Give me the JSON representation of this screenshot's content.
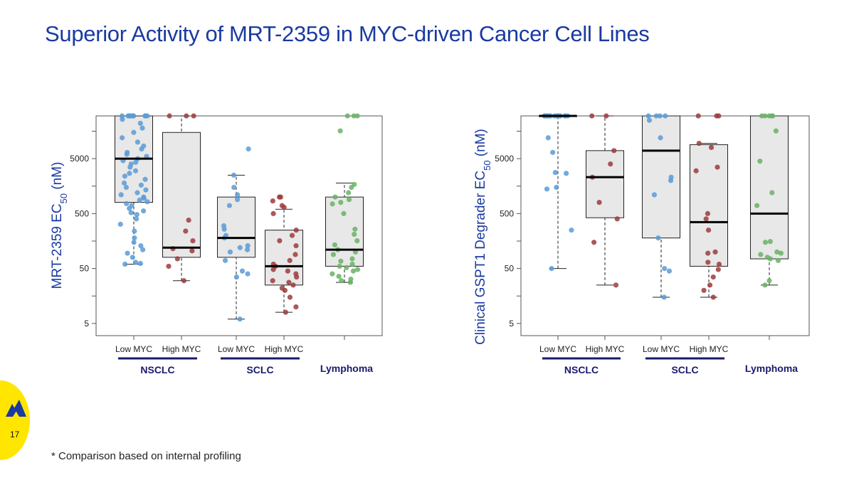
{
  "slide": {
    "title": "Superior Activity of MRT-2359 in MYC-driven Cancer Cell Lines",
    "footnote": "* Comparison based on internal profiling",
    "page_number": "17",
    "logo_icon": "company-logo-icon",
    "colors": {
      "title": "#1a3aa0",
      "badge": "#ffe600",
      "group_bar": "#1a1a6e"
    }
  },
  "chart_data": [
    {
      "type": "box",
      "ylabel": "MRT-2359 EC50 (nM)",
      "yscale": "log",
      "ylim": [
        3,
        30000
      ],
      "yticks": [
        5,
        50,
        500,
        5000
      ],
      "categories": [
        "Low MYC",
        "High MYC",
        "Low MYC",
        "High MYC",
        ""
      ],
      "groups": [
        {
          "label": "NSCLC",
          "categories": [
            0,
            1
          ]
        },
        {
          "label": "SCLC",
          "categories": [
            2,
            3
          ]
        },
        {
          "label": "Lymphoma",
          "categories": [
            4
          ]
        }
      ],
      "boxes": [
        {
          "color": "#5b9bd5",
          "min": 60,
          "q1": 800,
          "median": 5000,
          "q3": 30000,
          "max": 30000,
          "points": [
            60,
            62,
            65,
            80,
            95,
            110,
            130,
            150,
            180,
            240,
            320,
            400,
            480,
            520,
            560,
            620,
            700,
            760,
            820,
            880,
            950,
            1000,
            1100,
            1200,
            1350,
            1500,
            1650,
            1800,
            2100,
            2400,
            2700,
            3000,
            3500,
            4000,
            4300,
            4600,
            5000,
            5500,
            6000,
            6500,
            7500,
            8500,
            10000,
            12000,
            15000,
            18000,
            22000,
            26000,
            30000,
            30000,
            30000,
            30000,
            30000,
            30000,
            30000,
            30000,
            30000,
            30000
          ]
        },
        {
          "color": "#9e3b3b",
          "min": 30,
          "q1": 80,
          "median": 120,
          "q3": 15000,
          "max": 30000,
          "points": [
            30,
            55,
            75,
            105,
            115,
            160,
            240,
            380,
            30000,
            30000,
            30000
          ]
        },
        {
          "color": "#5b9bd5",
          "min": 6,
          "q1": 80,
          "median": 180,
          "q3": 1000,
          "max": 2500,
          "points": [
            6,
            35,
            40,
            45,
            70,
            100,
            110,
            120,
            130,
            180,
            200,
            260,
            300,
            700,
            900,
            1100,
            1500,
            2500,
            7500
          ]
        },
        {
          "color": "#9e3b3b",
          "min": 8,
          "q1": 25,
          "median": 55,
          "q3": 250,
          "max": 600,
          "points": [
            8,
            10,
            15,
            20,
            22,
            25,
            28,
            30,
            35,
            40,
            45,
            48,
            55,
            60,
            70,
            90,
            130,
            160,
            200,
            250,
            500,
            650,
            700,
            850,
            1000,
            1000
          ]
        },
        {
          "color": "#6ab265",
          "min": 28,
          "q1": 55,
          "median": 110,
          "q3": 1000,
          "max": 1800,
          "points": [
            28,
            30,
            32,
            36,
            40,
            45,
            48,
            52,
            55,
            60,
            68,
            75,
            90,
            100,
            110,
            135,
            160,
            210,
            260,
            500,
            750,
            800,
            900,
            1000,
            1200,
            1500,
            1700,
            16000,
            30000,
            30000,
            30000
          ]
        }
      ]
    },
    {
      "type": "box",
      "ylabel": "Clinical GSPT1 Degrader EC50 (nM)",
      "yscale": "log",
      "ylim": [
        3,
        30000
      ],
      "yticks": [
        5,
        50,
        500,
        5000
      ],
      "categories": [
        "Low MYC",
        "High MYC",
        "Low MYC",
        "High MYC",
        ""
      ],
      "groups": [
        {
          "label": "NSCLC",
          "categories": [
            0,
            1
          ]
        },
        {
          "label": "SCLC",
          "categories": [
            2,
            3
          ]
        },
        {
          "label": "Lymphoma",
          "categories": [
            4
          ]
        }
      ],
      "boxes": [
        {
          "color": "#5b9bd5",
          "min": 50,
          "q1": 30000,
          "median": 30000,
          "q3": 30000,
          "max": 30000,
          "points": [
            50,
            250,
            1400,
            1500,
            2700,
            2800,
            6500,
            12000,
            30000,
            30000,
            30000,
            30000,
            30000,
            30000,
            30000,
            30000,
            30000,
            30000,
            30000,
            30000,
            30000,
            30000,
            30000,
            30000,
            30000
          ]
        },
        {
          "color": "#9e3b3b",
          "min": 25,
          "q1": 420,
          "median": 2300,
          "q3": 7000,
          "max": 30000,
          "points": [
            25,
            150,
            400,
            800,
            2300,
            4000,
            7000,
            30000,
            30000
          ]
        },
        {
          "color": "#5b9bd5",
          "min": 15,
          "q1": 180,
          "median": 7000,
          "q3": 30000,
          "max": 30000,
          "points": [
            15,
            45,
            50,
            180,
            1100,
            2000,
            2300,
            12000,
            25000,
            30000,
            30000,
            30000,
            30000
          ]
        },
        {
          "color": "#9e3b3b",
          "min": 15,
          "q1": 55,
          "median": 350,
          "q3": 9000,
          "max": 9500,
          "points": [
            15,
            20,
            25,
            35,
            48,
            60,
            65,
            95,
            100,
            250,
            400,
            500,
            3000,
            3500,
            8000,
            9500,
            30000,
            30000,
            30000
          ]
        },
        {
          "color": "#6ab265",
          "min": 25,
          "q1": 75,
          "median": 500,
          "q3": 30000,
          "max": 30000,
          "points": [
            25,
            30,
            70,
            75,
            80,
            90,
            95,
            100,
            150,
            155,
            700,
            1200,
            4500,
            16000,
            30000,
            30000,
            30000,
            30000,
            30000
          ]
        }
      ]
    }
  ]
}
